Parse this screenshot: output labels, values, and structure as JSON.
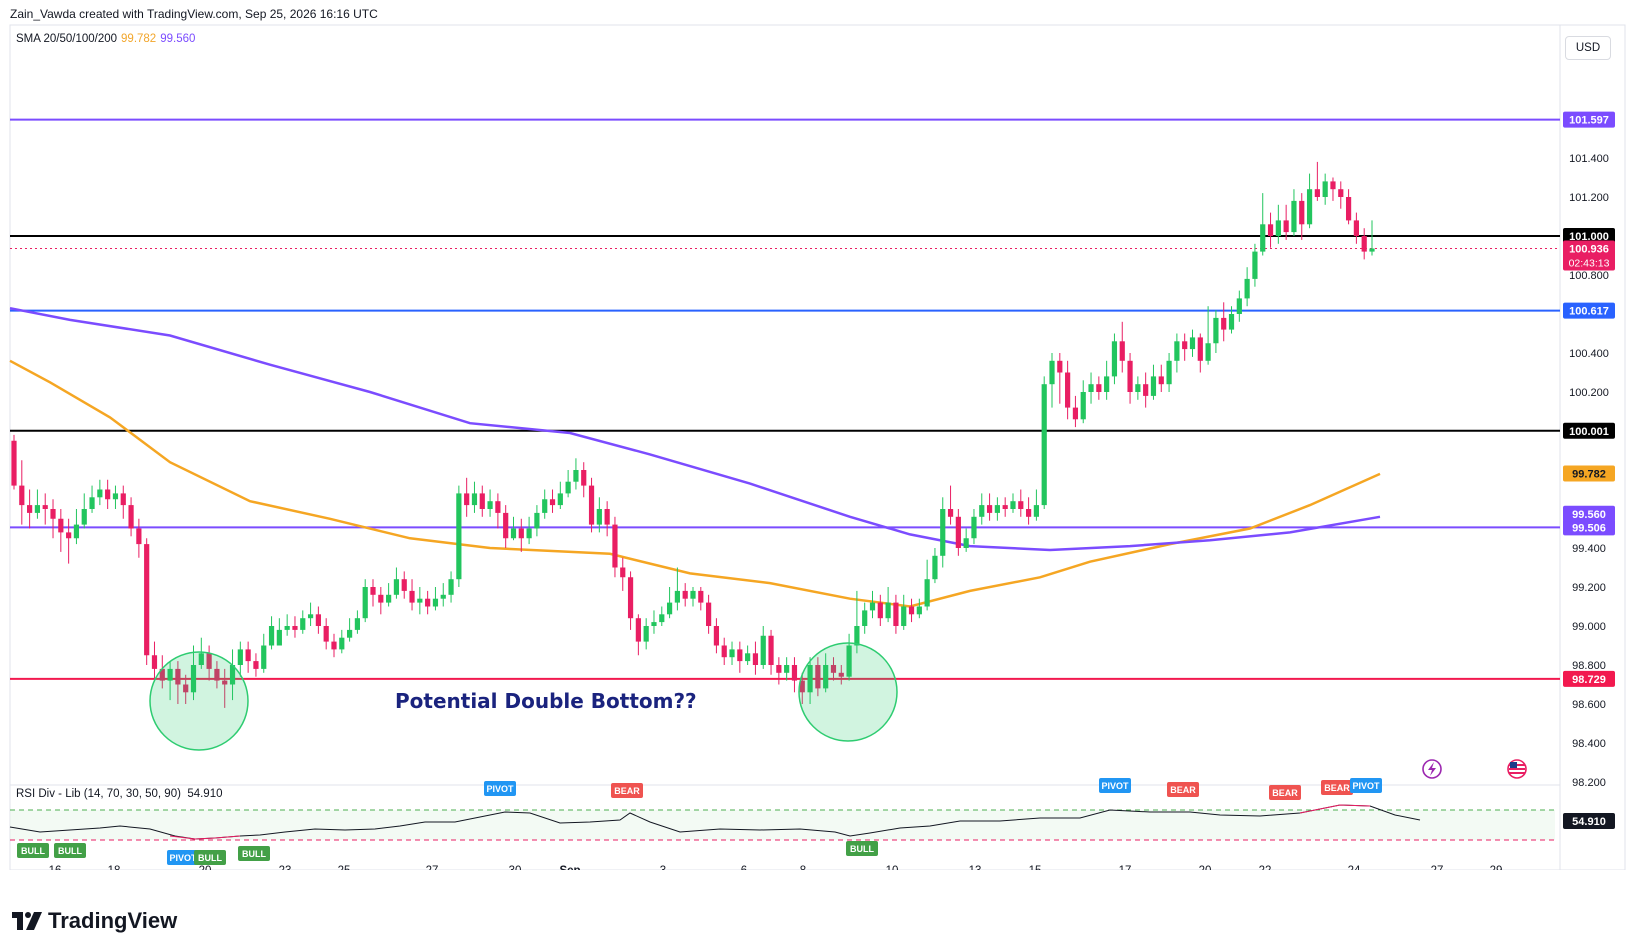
{
  "header": {
    "credit": "Zain_Vawda created with TradingView.com, Sep 25, 2026 16:16 UTC"
  },
  "legend": {
    "sma_label": "SMA 20/50/100/200",
    "sma_value_1": "99.782",
    "sma_value_2": "99.560",
    "rsi_label": "RSI Div - Lib (14, 70, 30, 50, 90)",
    "rsi_value": "54.910"
  },
  "currency": "USD",
  "annotation": "Potential Double Bottom??",
  "footer": {
    "brand": "TradingView"
  },
  "colors": {
    "up": "#26a69a",
    "up_fill": "#22c55e",
    "down": "#e91e63",
    "sma_orange": "#f5a623",
    "sma_purple": "#7b4cff",
    "line_blue": "#2962ff",
    "level_black": "#000000",
    "level_red": "#f2194f"
  },
  "chart_data": {
    "type": "candlestick",
    "price_ticks": [
      "101.400",
      "101.200",
      "100.800",
      "100.400",
      "100.200",
      "99.400",
      "99.200",
      "99.000",
      "98.800",
      "98.600",
      "98.400",
      "98.200"
    ],
    "date_ticks": [
      "16",
      "18",
      "20",
      "23",
      "25",
      "27",
      "30",
      "Sep",
      "3",
      "6",
      "8",
      "10",
      "13",
      "15",
      "17",
      "20",
      "22",
      "24",
      "27",
      "29"
    ],
    "levels": [
      {
        "label": "101.597",
        "value": 101.597,
        "color": "#7b4cff",
        "style": "solid"
      },
      {
        "label": "101.000",
        "value": 101.0,
        "color": "#000000",
        "style": "solid"
      },
      {
        "label": "100.617",
        "value": 100.617,
        "color": "#2962ff",
        "style": "solid"
      },
      {
        "label": "100.001",
        "value": 100.001,
        "color": "#000000",
        "style": "solid"
      },
      {
        "label": "99.506",
        "value": 99.506,
        "color": "#7b4cff",
        "style": "solid"
      },
      {
        "label": "98.729",
        "value": 98.729,
        "color": "#f2194f",
        "style": "solid"
      }
    ],
    "last_price": {
      "label": "100.936",
      "countdown": "02:43:13",
      "value": 100.936
    },
    "sma_tags": [
      {
        "label": "99.782",
        "value": 99.782,
        "color": "#f5a623"
      },
      {
        "label": "99.560",
        "value": 99.56,
        "color": "#7b4cff"
      }
    ],
    "sma_orange": [
      [
        0,
        100.36
      ],
      [
        40,
        100.25
      ],
      [
        100,
        100.07
      ],
      [
        160,
        99.84
      ],
      [
        240,
        99.64
      ],
      [
        320,
        99.55
      ],
      [
        400,
        99.45
      ],
      [
        480,
        99.4
      ],
      [
        600,
        99.37
      ],
      [
        680,
        99.27
      ],
      [
        760,
        99.22
      ],
      [
        840,
        99.14
      ],
      [
        900,
        99.1
      ],
      [
        960,
        99.18
      ],
      [
        1030,
        99.25
      ],
      [
        1080,
        99.33
      ],
      [
        1160,
        99.42
      ],
      [
        1240,
        99.5
      ],
      [
        1300,
        99.62
      ],
      [
        1370,
        99.78
      ]
    ],
    "sma_purple": [
      [
        0,
        100.63
      ],
      [
        60,
        100.57
      ],
      [
        160,
        100.49
      ],
      [
        260,
        100.34
      ],
      [
        360,
        100.2
      ],
      [
        460,
        100.04
      ],
      [
        560,
        99.99
      ],
      [
        640,
        99.88
      ],
      [
        740,
        99.73
      ],
      [
        840,
        99.56
      ],
      [
        900,
        99.47
      ],
      [
        960,
        99.41
      ],
      [
        1040,
        99.39
      ],
      [
        1120,
        99.41
      ],
      [
        1200,
        99.44
      ],
      [
        1280,
        99.48
      ],
      [
        1370,
        99.56
      ]
    ],
    "candles": [
      [
        99.95,
        99.72,
        99.98,
        99.7
      ],
      [
        99.72,
        99.62,
        99.85,
        99.52
      ],
      [
        99.62,
        99.58,
        99.7,
        99.5
      ],
      [
        99.58,
        99.62,
        99.7,
        99.55
      ],
      [
        99.62,
        99.6,
        99.68,
        99.52
      ],
      [
        99.6,
        99.55,
        99.65,
        99.45
      ],
      [
        99.55,
        99.48,
        99.6,
        99.38
      ],
      [
        99.48,
        99.45,
        99.55,
        99.32
      ],
      [
        99.45,
        99.52,
        99.6,
        99.42
      ],
      [
        99.52,
        99.6,
        99.68,
        99.5
      ],
      [
        99.6,
        99.66,
        99.72,
        99.58
      ],
      [
        99.66,
        99.7,
        99.75,
        99.62
      ],
      [
        99.7,
        99.65,
        99.75,
        99.6
      ],
      [
        99.65,
        99.68,
        99.72,
        99.6
      ],
      [
        99.68,
        99.62,
        99.72,
        99.55
      ],
      [
        99.62,
        99.5,
        99.66,
        99.46
      ],
      [
        99.5,
        99.42,
        99.55,
        99.35
      ],
      [
        99.42,
        98.85,
        99.45,
        98.8
      ],
      [
        98.85,
        98.78,
        98.92,
        98.72
      ],
      [
        98.78,
        98.72,
        98.85,
        98.68
      ],
      [
        98.72,
        98.78,
        98.82,
        98.62
      ],
      [
        98.78,
        98.7,
        98.82,
        98.6
      ],
      [
        98.7,
        98.66,
        98.75,
        98.6
      ],
      [
        98.66,
        98.8,
        98.9,
        98.62
      ],
      [
        98.8,
        98.86,
        98.94,
        98.78
      ],
      [
        98.86,
        98.78,
        98.9,
        98.72
      ],
      [
        98.78,
        98.72,
        98.82,
        98.68
      ],
      [
        98.72,
        98.7,
        98.78,
        98.58
      ],
      [
        98.7,
        98.8,
        98.88,
        98.62
      ],
      [
        98.8,
        98.88,
        98.92,
        98.74
      ],
      [
        98.88,
        98.82,
        98.92,
        98.76
      ],
      [
        98.82,
        98.78,
        98.86,
        98.74
      ],
      [
        98.78,
        98.9,
        98.96,
        98.76
      ],
      [
        98.9,
        99.0,
        99.05,
        98.88
      ],
      [
        98.9,
        98.98,
        99.04,
        98.9
      ],
      [
        98.98,
        99.0,
        99.06,
        98.95
      ],
      [
        99.0,
        98.98,
        99.05,
        98.94
      ],
      [
        98.98,
        99.04,
        99.08,
        98.96
      ],
      [
        99.04,
        99.06,
        99.12,
        99.0
      ],
      [
        99.06,
        99.0,
        99.1,
        98.96
      ],
      [
        99.0,
        98.92,
        99.04,
        98.88
      ],
      [
        98.92,
        98.88,
        98.96,
        98.84
      ],
      [
        98.88,
        98.94,
        98.98,
        98.86
      ],
      [
        98.94,
        98.98,
        99.04,
        98.92
      ],
      [
        98.98,
        99.04,
        99.08,
        98.96
      ],
      [
        99.04,
        99.2,
        99.24,
        99.02
      ],
      [
        99.2,
        99.16,
        99.24,
        99.1
      ],
      [
        99.16,
        99.12,
        99.2,
        99.06
      ],
      [
        99.12,
        99.16,
        99.22,
        99.1
      ],
      [
        99.16,
        99.24,
        99.3,
        99.14
      ],
      [
        99.24,
        99.18,
        99.28,
        99.14
      ],
      [
        99.18,
        99.12,
        99.24,
        99.08
      ],
      [
        99.12,
        99.14,
        99.2,
        99.06
      ],
      [
        99.14,
        99.1,
        99.18,
        99.06
      ],
      [
        99.1,
        99.14,
        99.2,
        99.08
      ],
      [
        99.14,
        99.16,
        99.22,
        99.1
      ],
      [
        99.16,
        99.24,
        99.28,
        99.12
      ],
      [
        99.24,
        99.68,
        99.72,
        99.2
      ],
      [
        99.68,
        99.62,
        99.76,
        99.56
      ],
      [
        99.62,
        99.68,
        99.74,
        99.58
      ],
      [
        99.68,
        99.6,
        99.72,
        99.56
      ],
      [
        99.6,
        99.64,
        99.7,
        99.56
      ],
      [
        99.64,
        99.58,
        99.68,
        99.5
      ],
      [
        99.58,
        99.45,
        99.62,
        99.4
      ],
      [
        99.45,
        99.5,
        99.56,
        99.44
      ],
      [
        99.5,
        99.45,
        99.55,
        99.38
      ],
      [
        99.45,
        99.5,
        99.56,
        99.42
      ],
      [
        99.5,
        99.58,
        99.62,
        99.46
      ],
      [
        99.58,
        99.65,
        99.7,
        99.55
      ],
      [
        99.65,
        99.62,
        99.7,
        99.58
      ],
      [
        99.62,
        99.68,
        99.74,
        99.6
      ],
      [
        99.68,
        99.74,
        99.8,
        99.66
      ],
      [
        99.74,
        99.8,
        99.86,
        99.7
      ],
      [
        99.8,
        99.72,
        99.84,
        99.66
      ],
      [
        99.72,
        99.52,
        99.76,
        99.48
      ],
      [
        99.52,
        99.6,
        99.66,
        99.48
      ],
      [
        99.6,
        99.52,
        99.64,
        99.46
      ],
      [
        99.52,
        99.3,
        99.56,
        99.25
      ],
      [
        99.3,
        99.25,
        99.35,
        99.18
      ],
      [
        99.25,
        99.04,
        99.28,
        98.98
      ],
      [
        99.04,
        98.92,
        99.06,
        98.85
      ],
      [
        98.92,
        99.0,
        99.04,
        98.88
      ],
      [
        99.0,
        99.02,
        99.08,
        98.96
      ],
      [
        99.02,
        99.06,
        99.1,
        99.0
      ],
      [
        99.06,
        99.12,
        99.2,
        99.04
      ],
      [
        99.12,
        99.18,
        99.3,
        99.08
      ],
      [
        99.18,
        99.14,
        99.22,
        99.1
      ],
      [
        99.14,
        99.18,
        99.2,
        99.1
      ],
      [
        99.18,
        99.12,
        99.2,
        99.08
      ],
      [
        99.12,
        99.0,
        99.16,
        98.96
      ],
      [
        99.0,
        98.9,
        99.04,
        98.86
      ],
      [
        98.9,
        98.84,
        98.94,
        98.8
      ],
      [
        98.84,
        98.88,
        98.92,
        98.8
      ],
      [
        98.88,
        98.82,
        98.92,
        98.76
      ],
      [
        98.82,
        98.86,
        98.9,
        98.8
      ],
      [
        98.86,
        98.8,
        98.92,
        98.75
      ],
      [
        98.8,
        98.95,
        99.0,
        98.78
      ],
      [
        98.95,
        98.8,
        98.98,
        98.75
      ],
      [
        98.8,
        98.76,
        98.84,
        98.7
      ],
      [
        98.76,
        98.8,
        98.84,
        98.72
      ],
      [
        98.8,
        98.72,
        98.84,
        98.66
      ],
      [
        98.72,
        98.66,
        98.76,
        98.6
      ],
      [
        98.66,
        98.8,
        98.84,
        98.6
      ],
      [
        98.8,
        98.68,
        98.84,
        98.64
      ],
      [
        98.68,
        98.8,
        98.86,
        98.66
      ],
      [
        98.8,
        98.76,
        98.84,
        98.72
      ],
      [
        98.76,
        98.74,
        98.8,
        98.7
      ],
      [
        98.74,
        98.9,
        98.96,
        98.72
      ],
      [
        98.9,
        99.0,
        99.18,
        98.86
      ],
      [
        99.0,
        99.08,
        99.12,
        98.96
      ],
      [
        99.08,
        99.12,
        99.18,
        99.04
      ],
      [
        99.12,
        99.04,
        99.16,
        99.0
      ],
      [
        99.04,
        99.12,
        99.2,
        99.02
      ],
      [
        99.12,
        99.0,
        99.16,
        98.96
      ],
      [
        99.0,
        99.1,
        99.16,
        98.98
      ],
      [
        99.1,
        99.06,
        99.14,
        99.02
      ],
      [
        99.06,
        99.1,
        99.14,
        99.04
      ],
      [
        99.1,
        99.24,
        99.34,
        99.08
      ],
      [
        99.24,
        99.36,
        99.4,
        99.22
      ],
      [
        99.36,
        99.6,
        99.66,
        99.3
      ],
      [
        99.6,
        99.56,
        99.72,
        99.52
      ],
      [
        99.56,
        99.4,
        99.6,
        99.36
      ],
      [
        99.4,
        99.45,
        99.5,
        99.38
      ],
      [
        99.45,
        99.56,
        99.6,
        99.42
      ],
      [
        99.56,
        99.62,
        99.68,
        99.52
      ],
      [
        99.62,
        99.58,
        99.68,
        99.54
      ],
      [
        99.58,
        99.62,
        99.66,
        99.54
      ],
      [
        99.62,
        99.6,
        99.66,
        99.56
      ],
      [
        99.6,
        99.64,
        99.68,
        99.58
      ],
      [
        99.64,
        99.6,
        99.7,
        99.56
      ],
      [
        99.6,
        99.56,
        99.66,
        99.52
      ],
      [
        99.56,
        99.62,
        99.7,
        99.54
      ],
      [
        99.62,
        100.24,
        100.28,
        99.6
      ],
      [
        100.24,
        100.36,
        100.4,
        100.12
      ],
      [
        100.36,
        100.3,
        100.4,
        100.14
      ],
      [
        100.3,
        100.12,
        100.36,
        100.06
      ],
      [
        100.12,
        100.06,
        100.18,
        100.02
      ],
      [
        100.06,
        100.2,
        100.26,
        100.04
      ],
      [
        100.2,
        100.24,
        100.3,
        100.14
      ],
      [
        100.24,
        100.2,
        100.28,
        100.16
      ],
      [
        100.2,
        100.28,
        100.36,
        100.16
      ],
      [
        100.28,
        100.46,
        100.5,
        100.24
      ],
      [
        100.46,
        100.36,
        100.56,
        100.3
      ],
      [
        100.36,
        100.2,
        100.4,
        100.14
      ],
      [
        100.2,
        100.24,
        100.28,
        100.16
      ],
      [
        100.24,
        100.18,
        100.3,
        100.12
      ],
      [
        100.18,
        100.28,
        100.34,
        100.16
      ],
      [
        100.28,
        100.24,
        100.34,
        100.2
      ],
      [
        100.24,
        100.36,
        100.4,
        100.2
      ],
      [
        100.36,
        100.46,
        100.5,
        100.3
      ],
      [
        100.46,
        100.42,
        100.5,
        100.36
      ],
      [
        100.42,
        100.48,
        100.52,
        100.38
      ],
      [
        100.48,
        100.36,
        100.5,
        100.3
      ],
      [
        100.36,
        100.45,
        100.64,
        100.34
      ],
      [
        100.45,
        100.58,
        100.62,
        100.4
      ],
      [
        100.58,
        100.52,
        100.66,
        100.46
      ],
      [
        100.52,
        100.6,
        100.64,
        100.5
      ],
      [
        100.6,
        100.68,
        100.72,
        100.56
      ],
      [
        100.68,
        100.78,
        100.84,
        100.64
      ],
      [
        100.78,
        100.92,
        100.96,
        100.74
      ],
      [
        100.92,
        101.06,
        101.22,
        100.9
      ],
      [
        101.06,
        101.0,
        101.12,
        100.94
      ],
      [
        101.0,
        101.08,
        101.16,
        100.96
      ],
      [
        101.08,
        101.02,
        101.16,
        100.98
      ],
      [
        101.02,
        101.18,
        101.24,
        101.0
      ],
      [
        101.18,
        101.06,
        101.22,
        100.98
      ],
      [
        101.06,
        101.24,
        101.32,
        101.04
      ],
      [
        101.24,
        101.2,
        101.38,
        101.18
      ],
      [
        101.2,
        101.28,
        101.32,
        101.16
      ],
      [
        101.28,
        101.24,
        101.3,
        101.18
      ],
      [
        101.24,
        101.2,
        101.28,
        101.14
      ],
      [
        101.2,
        101.08,
        101.24,
        101.06
      ],
      [
        101.08,
        101.0,
        101.12,
        100.96
      ],
      [
        101.0,
        100.92,
        101.04,
        100.88
      ],
      [
        100.92,
        100.936,
        101.08,
        100.9
      ]
    ]
  }
}
